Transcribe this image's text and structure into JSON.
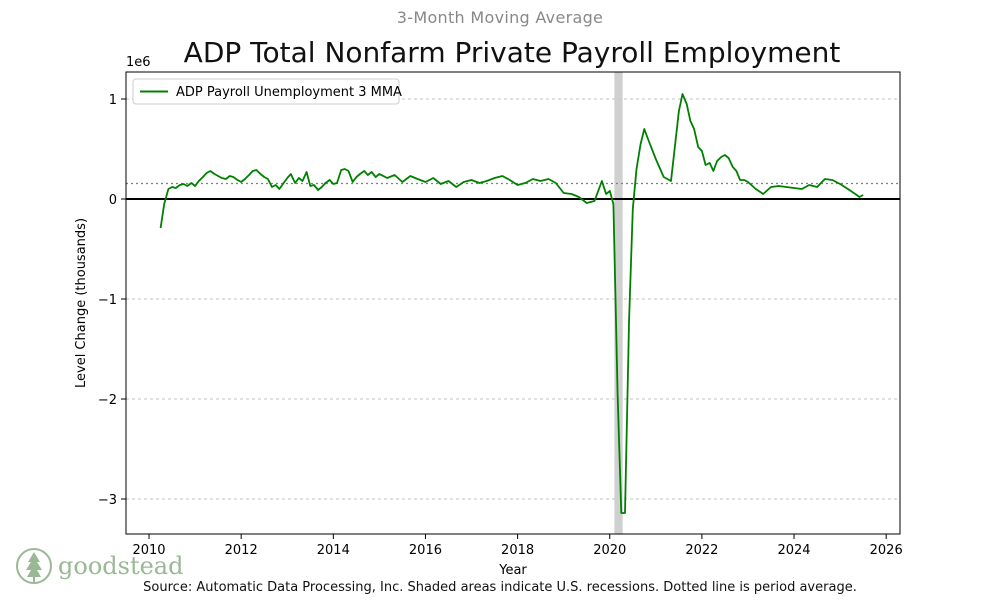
{
  "header": {
    "subtitle": "3-Month Moving Average",
    "title": "ADP Total Nonfarm Private Payroll Employment"
  },
  "footer": {
    "source": "Source: Automatic Data Processing, Inc. Shaded areas indicate U.S. recessions. Dotted line is period average.",
    "logo_text": "goodstead"
  },
  "colors": {
    "series": "#008000",
    "recession": "#c8c8c8",
    "zero_line": "#000000",
    "average_line": "#808080",
    "grid": "#b0b0b0"
  },
  "chart_data": {
    "type": "line",
    "title": "ADP Total Nonfarm Private Payroll Employment",
    "subtitle": "3-Month Moving Average",
    "xlabel": "Year",
    "ylabel": "Level Change (thousands)",
    "y_offset_label": "1e6",
    "xlim": [
      2009.5,
      2026.3
    ],
    "ylim": [
      -3.35,
      1.27
    ],
    "xticks": [
      2010,
      2012,
      2014,
      2016,
      2018,
      2020,
      2022,
      2024,
      2026
    ],
    "xtick_labels": [
      "2010",
      "2012",
      "2014",
      "2016",
      "2018",
      "2020",
      "2022",
      "2024",
      "2026"
    ],
    "yticks": [
      1,
      0,
      -1,
      -2,
      -3
    ],
    "ytick_labels": [
      "1",
      "0",
      "−1",
      "−2",
      "−3"
    ],
    "grid": "horizontal dashed",
    "legend": {
      "position": "top-left",
      "entries": [
        "ADP Payroll Unemployment 3 MMA"
      ]
    },
    "average": 0.155,
    "recession": [
      2020.1,
      2020.28
    ],
    "series": [
      {
        "name": "ADP Payroll Unemployment 3 MMA",
        "x": [
          2010.25,
          2010.33,
          2010.42,
          2010.5,
          2010.58,
          2010.67,
          2010.75,
          2010.83,
          2010.92,
          2011.0,
          2011.08,
          2011.17,
          2011.25,
          2011.33,
          2011.42,
          2011.5,
          2011.58,
          2011.67,
          2011.75,
          2011.83,
          2011.92,
          2012.0,
          2012.08,
          2012.17,
          2012.25,
          2012.33,
          2012.42,
          2012.5,
          2012.58,
          2012.67,
          2012.75,
          2012.83,
          2012.92,
          2013.0,
          2013.08,
          2013.17,
          2013.25,
          2013.33,
          2013.42,
          2013.5,
          2013.58,
          2013.67,
          2013.75,
          2013.83,
          2013.92,
          2014.0,
          2014.08,
          2014.17,
          2014.25,
          2014.33,
          2014.42,
          2014.5,
          2014.58,
          2014.67,
          2014.75,
          2014.83,
          2014.92,
          2015.0,
          2015.17,
          2015.33,
          2015.5,
          2015.67,
          2015.83,
          2016.0,
          2016.17,
          2016.33,
          2016.5,
          2016.67,
          2016.83,
          2017.0,
          2017.17,
          2017.33,
          2017.5,
          2017.67,
          2017.83,
          2018.0,
          2018.17,
          2018.33,
          2018.5,
          2018.67,
          2018.83,
          2019.0,
          2019.17,
          2019.33,
          2019.5,
          2019.67,
          2019.83,
          2019.92,
          2020.0,
          2020.08,
          2020.17,
          2020.25,
          2020.33,
          2020.42,
          2020.5,
          2020.58,
          2020.67,
          2020.75,
          2020.83,
          2021.0,
          2021.17,
          2021.33,
          2021.5,
          2021.58,
          2021.67,
          2021.75,
          2021.83,
          2021.92,
          2022.0,
          2022.08,
          2022.17,
          2022.25,
          2022.33,
          2022.42,
          2022.5,
          2022.58,
          2022.67,
          2022.75,
          2022.83,
          2022.92,
          2023.0,
          2023.17,
          2023.33,
          2023.5,
          2023.67,
          2023.83,
          2024.0,
          2024.17,
          2024.33,
          2024.5,
          2024.67,
          2024.83,
          2025.0,
          2025.17,
          2025.33,
          2025.42,
          2025.5
        ],
        "values": [
          -0.29,
          -0.05,
          0.1,
          0.12,
          0.11,
          0.14,
          0.15,
          0.13,
          0.16,
          0.13,
          0.18,
          0.22,
          0.26,
          0.28,
          0.25,
          0.23,
          0.21,
          0.2,
          0.23,
          0.22,
          0.19,
          0.17,
          0.2,
          0.24,
          0.28,
          0.29,
          0.25,
          0.22,
          0.2,
          0.12,
          0.14,
          0.1,
          0.16,
          0.21,
          0.25,
          0.16,
          0.21,
          0.18,
          0.27,
          0.13,
          0.14,
          0.09,
          0.12,
          0.16,
          0.19,
          0.15,
          0.16,
          0.29,
          0.3,
          0.28,
          0.17,
          0.22,
          0.25,
          0.28,
          0.24,
          0.27,
          0.22,
          0.25,
          0.21,
          0.24,
          0.17,
          0.23,
          0.2,
          0.17,
          0.21,
          0.15,
          0.18,
          0.12,
          0.17,
          0.19,
          0.16,
          0.18,
          0.21,
          0.23,
          0.19,
          0.14,
          0.16,
          0.2,
          0.18,
          0.2,
          0.16,
          0.06,
          0.05,
          0.02,
          -0.04,
          -0.02,
          0.18,
          0.05,
          0.08,
          -0.05,
          -1.95,
          -3.14,
          -3.14,
          -1.2,
          -0.1,
          0.3,
          0.55,
          0.7,
          0.6,
          0.4,
          0.22,
          0.18,
          0.88,
          1.05,
          0.95,
          0.78,
          0.7,
          0.52,
          0.48,
          0.34,
          0.36,
          0.28,
          0.38,
          0.42,
          0.44,
          0.41,
          0.32,
          0.28,
          0.19,
          0.19,
          0.17,
          0.1,
          0.05,
          0.12,
          0.13,
          0.12,
          0.11,
          0.1,
          0.14,
          0.12,
          0.2,
          0.19,
          0.15,
          0.1,
          0.05,
          0.02,
          0.04
        ]
      }
    ]
  }
}
